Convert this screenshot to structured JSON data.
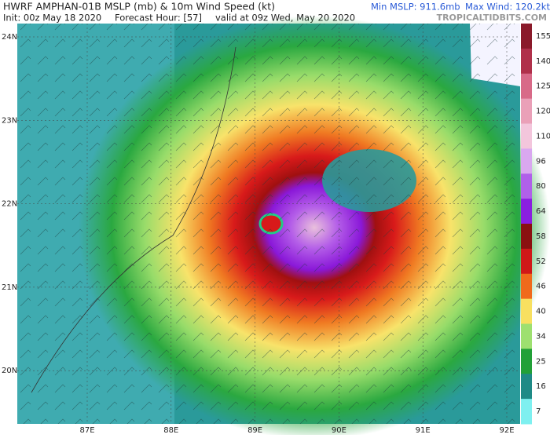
{
  "header": {
    "title": "HWRF AMPHAN-01B MSLP (mb) & 10m Wind Speed (kt)",
    "init": "Init: 00z May 18 2020",
    "forecast_hour": "Forecast Hour: [57]",
    "valid": "valid at 09z Wed, May 20 2020",
    "min_mslp": "Min MSLP: 911.6mb",
    "max_wind": "Max Wind: 120.2kt",
    "source": "TROPICALTIDBITS.COM"
  },
  "map": {
    "lat_labels": [
      "24N",
      "23N",
      "22N",
      "21N",
      "20N"
    ],
    "lon_labels": [
      "87E",
      "88E",
      "89E",
      "90E",
      "91E",
      "92E"
    ]
  },
  "colorbar": {
    "levels": [
      {
        "label": "155",
        "color": "#8a1a2a"
      },
      {
        "label": "140",
        "color": "#b0304a"
      },
      {
        "label": "125",
        "color": "#d86a88"
      },
      {
        "label": "120",
        "color": "#eaa0b8"
      },
      {
        "label": "110",
        "color": "#f3c6dc"
      },
      {
        "label": "96",
        "color": "#d9a8f0"
      },
      {
        "label": "80",
        "color": "#b060ea"
      },
      {
        "label": "64",
        "color": "#8a1ee0"
      },
      {
        "label": "58",
        "color": "#8a1010"
      },
      {
        "label": "52",
        "color": "#d01818"
      },
      {
        "label": "46",
        "color": "#f06a1c"
      },
      {
        "label": "40",
        "color": "#f8e060"
      },
      {
        "label": "34",
        "color": "#9ee070"
      },
      {
        "label": "25",
        "color": "#22a038"
      },
      {
        "label": "16",
        "color": "#1f8a86"
      },
      {
        "label": "7",
        "color": "#7ef0f0"
      }
    ]
  }
}
